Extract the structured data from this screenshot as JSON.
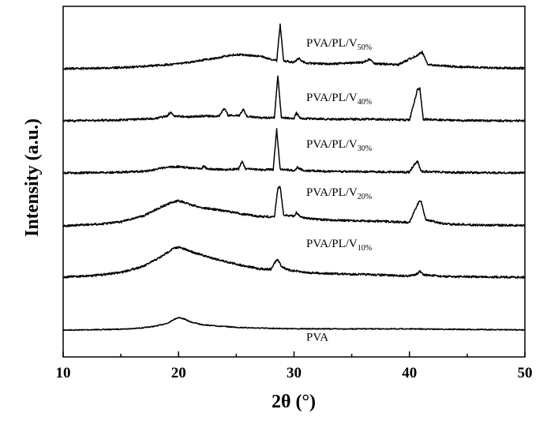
{
  "chart_data": {
    "type": "line",
    "title": "",
    "xlabel": "2θ (°)",
    "ylabel": "Intensity (a.u.)",
    "xlim": [
      10,
      50
    ],
    "xticks": [
      10,
      20,
      30,
      40,
      50
    ],
    "grid": false,
    "legend": "inline labels above each trace",
    "series": [
      {
        "name": "PVA",
        "base": "PVA",
        "sub": "",
        "offset": 0,
        "points": [
          [
            10,
            0.0
          ],
          [
            12,
            0.3
          ],
          [
            14,
            0.8
          ],
          [
            16,
            1.8
          ],
          [
            17,
            3.0
          ],
          [
            18,
            5.0
          ],
          [
            19,
            8.5
          ],
          [
            19.6,
            13.5
          ],
          [
            20.0,
            16.0
          ],
          [
            20.5,
            14.0
          ],
          [
            21,
            10.5
          ],
          [
            22,
            7.0
          ],
          [
            23,
            5.5
          ],
          [
            25,
            3.5
          ],
          [
            27,
            2.5
          ],
          [
            30,
            1.7
          ],
          [
            35,
            1.5
          ],
          [
            40,
            1.5
          ],
          [
            42,
            1.2
          ],
          [
            45,
            0.8
          ],
          [
            50,
            0.3
          ]
        ]
      },
      {
        "name": "PVA/PL/V10%",
        "base": "PVA/PL/V",
        "sub": "10%",
        "offset": 67,
        "points": [
          [
            10,
            0.0
          ],
          [
            13,
            2.5
          ],
          [
            15,
            6.0
          ],
          [
            17,
            14.0
          ],
          [
            18.5,
            26.0
          ],
          [
            19.5,
            36.0
          ],
          [
            20.0,
            38.0
          ],
          [
            21,
            33.0
          ],
          [
            22,
            28.0
          ],
          [
            24,
            20.0
          ],
          [
            25.5,
            15.0
          ],
          [
            27,
            10.5
          ],
          [
            28,
            10.0
          ],
          [
            28.4,
            20.0
          ],
          [
            28.6,
            22.0
          ],
          [
            28.9,
            14.0
          ],
          [
            29.5,
            9.0
          ],
          [
            31,
            6.0
          ],
          [
            33,
            4.5
          ],
          [
            36,
            3.5
          ],
          [
            40,
            1.5
          ],
          [
            40.7,
            4.5
          ],
          [
            40.9,
            7.5
          ],
          [
            41.2,
            3.0
          ],
          [
            43,
            0.8
          ],
          [
            50,
            0.0
          ]
        ]
      },
      {
        "name": "PVA/PL/V20%",
        "base": "PVA/PL/V",
        "sub": "20%",
        "offset": 132,
        "points": [
          [
            10,
            0.0
          ],
          [
            13,
            2.0
          ],
          [
            15,
            5.0
          ],
          [
            17,
            13.0
          ],
          [
            18.5,
            24.0
          ],
          [
            19.5,
            30.0
          ],
          [
            20.0,
            32.0
          ],
          [
            21,
            27.0
          ],
          [
            22,
            23.0
          ],
          [
            24,
            19.0
          ],
          [
            25.5,
            15.0
          ],
          [
            27,
            12.0
          ],
          [
            28.3,
            11.0
          ],
          [
            28.6,
            48.0
          ],
          [
            28.8,
            49.0
          ],
          [
            29.1,
            14.0
          ],
          [
            30,
            12.0
          ],
          [
            30.2,
            17.0
          ],
          [
            30.6,
            11.0
          ],
          [
            32,
            8.0
          ],
          [
            35,
            6.5
          ],
          [
            38,
            5.5
          ],
          [
            40,
            4.5
          ],
          [
            40.8,
            30.0
          ],
          [
            41.0,
            32.0
          ],
          [
            41.4,
            8.0
          ],
          [
            43,
            2.5
          ],
          [
            46,
            1.0
          ],
          [
            50,
            0.5
          ]
        ]
      },
      {
        "name": "PVA/PL/V30%",
        "base": "PVA/PL/V",
        "sub": "30%",
        "offset": 199,
        "points": [
          [
            10,
            0.0
          ],
          [
            14,
            0.5
          ],
          [
            17,
            2.0
          ],
          [
            19,
            7.0
          ],
          [
            20,
            8.0
          ],
          [
            21,
            6.5
          ],
          [
            22,
            6.0
          ],
          [
            22.2,
            9.0
          ],
          [
            22.5,
            5.0
          ],
          [
            24,
            4.0
          ],
          [
            25.2,
            5.0
          ],
          [
            25.5,
            15.0
          ],
          [
            25.8,
            5.0
          ],
          [
            27,
            4.0
          ],
          [
            28.2,
            4.5
          ],
          [
            28.5,
            55.0
          ],
          [
            28.8,
            5.0
          ],
          [
            30,
            3.0
          ],
          [
            30.3,
            7.0
          ],
          [
            30.8,
            3.0
          ],
          [
            33,
            2.0
          ],
          [
            37,
            1.5
          ],
          [
            40,
            1.0
          ],
          [
            40.5,
            12.0
          ],
          [
            40.7,
            15.0
          ],
          [
            41,
            2.0
          ],
          [
            44,
            0.5
          ],
          [
            50,
            0.0
          ]
        ]
      },
      {
        "name": "PVA/PL/V40%",
        "base": "PVA/PL/V",
        "sub": "40%",
        "offset": 265,
        "points": [
          [
            10,
            0.0
          ],
          [
            15,
            1.0
          ],
          [
            18,
            3.0
          ],
          [
            19,
            6.0
          ],
          [
            19.3,
            11.0
          ],
          [
            19.6,
            6.0
          ],
          [
            21,
            5.0
          ],
          [
            22,
            6.0
          ],
          [
            23.5,
            6.0
          ],
          [
            24,
            16.0
          ],
          [
            24.3,
            7.0
          ],
          [
            25.3,
            7.0
          ],
          [
            25.6,
            15.0
          ],
          [
            25.9,
            6.0
          ],
          [
            27,
            4.0
          ],
          [
            28.3,
            4.0
          ],
          [
            28.6,
            58.0
          ],
          [
            28.9,
            4.0
          ],
          [
            30,
            3.0
          ],
          [
            30.2,
            10.0
          ],
          [
            30.6,
            3.0
          ],
          [
            33,
            2.0
          ],
          [
            37,
            2.0
          ],
          [
            40,
            1.0
          ],
          [
            40.7,
            40.0
          ],
          [
            40.9,
            41.0
          ],
          [
            41.2,
            2.0
          ],
          [
            44,
            0.5
          ],
          [
            50,
            0.0
          ]
        ]
      },
      {
        "name": "PVA/PL/V50%",
        "base": "PVA/PL/V",
        "sub": "50%",
        "offset": 331,
        "points": [
          [
            10,
            0.0
          ],
          [
            13,
            0.5
          ],
          [
            16,
            2.0
          ],
          [
            19,
            5.0
          ],
          [
            21,
            8.0
          ],
          [
            23,
            13.0
          ],
          [
            25,
            18.0
          ],
          [
            27,
            16.0
          ],
          [
            28.5,
            10.0
          ],
          [
            28.8,
            56.0
          ],
          [
            29.1,
            10.0
          ],
          [
            30,
            8.0
          ],
          [
            30.4,
            13.0
          ],
          [
            31,
            7.0
          ],
          [
            33,
            6.0
          ],
          [
            36,
            8.0
          ],
          [
            36.5,
            12.0
          ],
          [
            37,
            6.5
          ],
          [
            39,
            5.0
          ],
          [
            40.8,
            18.0
          ],
          [
            41.1,
            21.0
          ],
          [
            41.6,
            5.0
          ],
          [
            44,
            2.5
          ],
          [
            47,
            1.0
          ],
          [
            50,
            0.5
          ]
        ]
      }
    ]
  }
}
